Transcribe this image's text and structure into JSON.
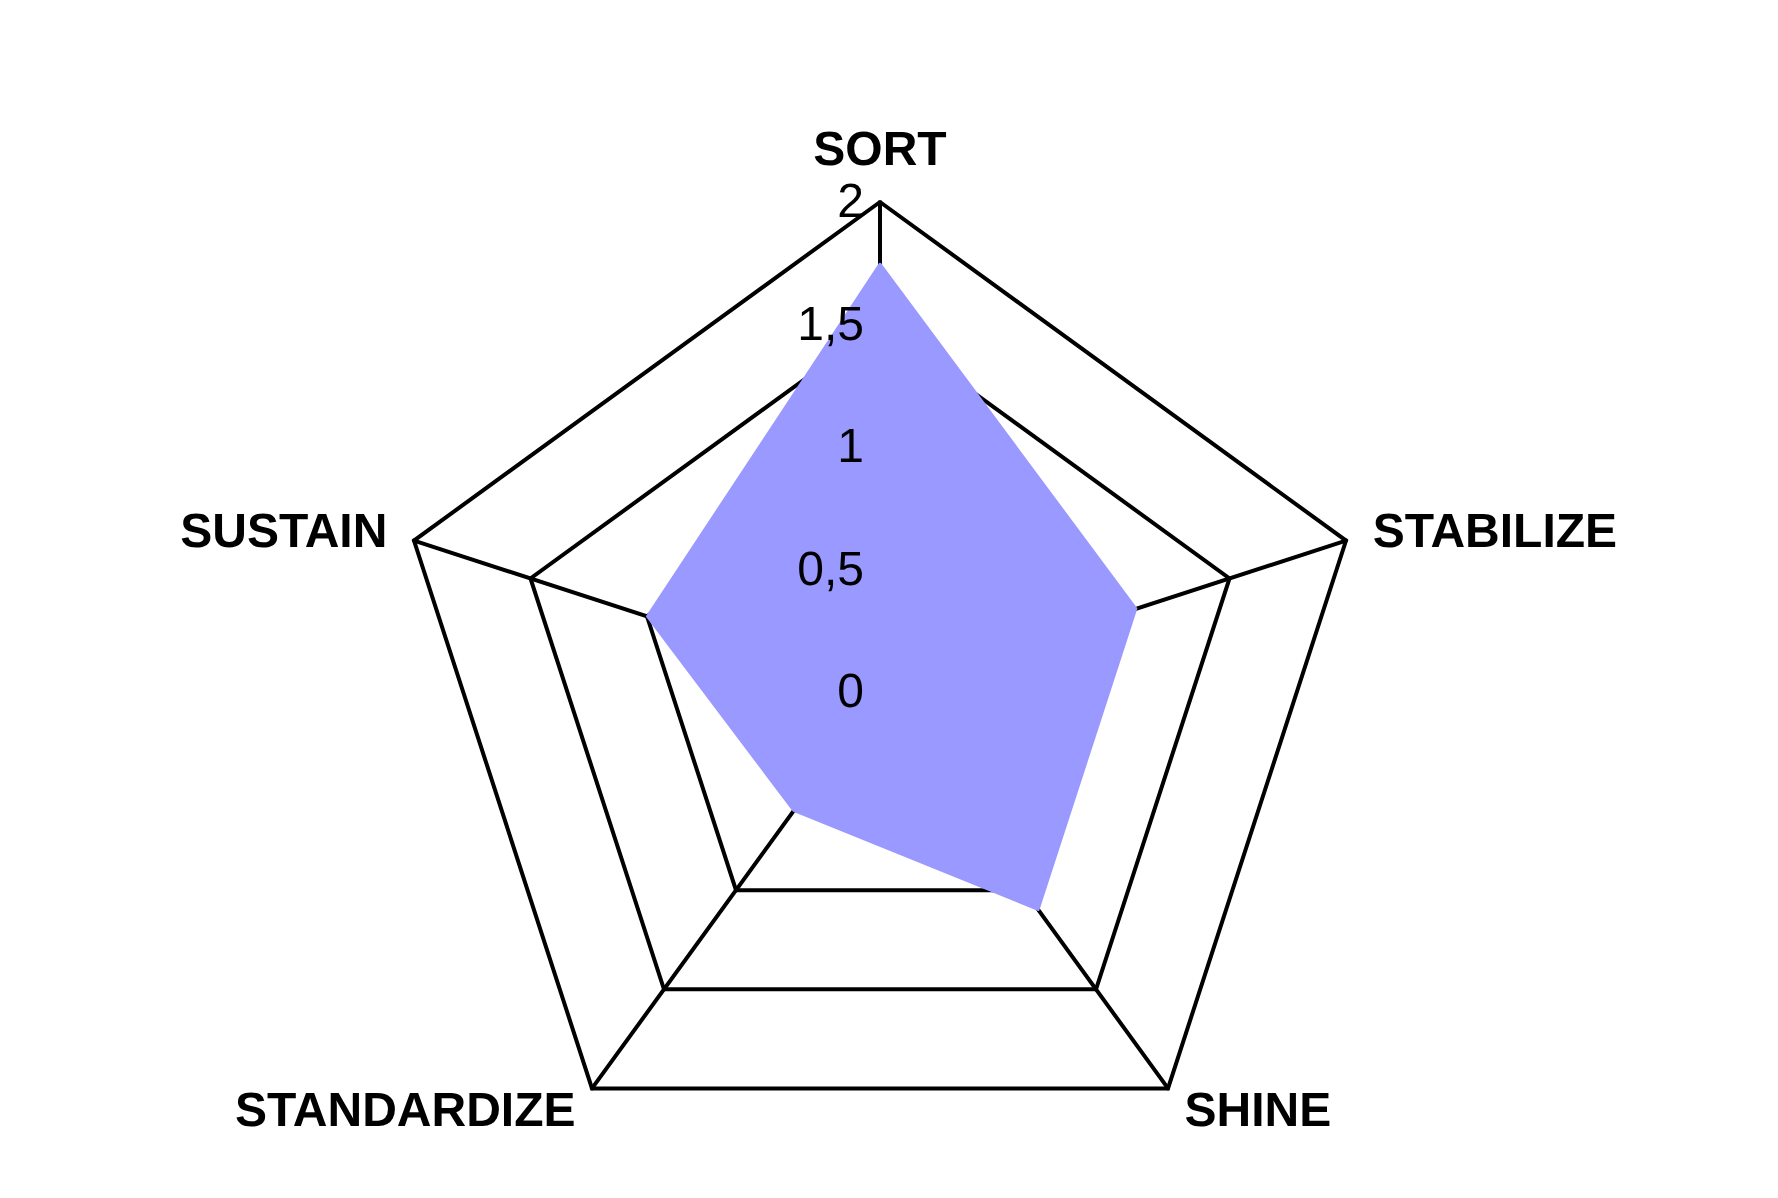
{
  "chart_data": {
    "type": "radar",
    "categories": [
      "SORT",
      "STABILIZE",
      "SHINE",
      "STANDARDIZE",
      "SUSTAIN"
    ],
    "series": [
      {
        "color": "#9999ff",
        "values": [
          1.75,
          1.1,
          1.1,
          0.6,
          1
        ]
      }
    ],
    "ylim": [
      0,
      2
    ],
    "yticks": [
      {
        "value": 0,
        "label": "0"
      },
      {
        "value": 0.5,
        "label": "0,5"
      },
      {
        "value": 1,
        "label": "1"
      },
      {
        "value": 1.5,
        "label": "1,5"
      },
      {
        "value": 2,
        "label": "2"
      }
    ],
    "grid": true,
    "marker": "none"
  }
}
